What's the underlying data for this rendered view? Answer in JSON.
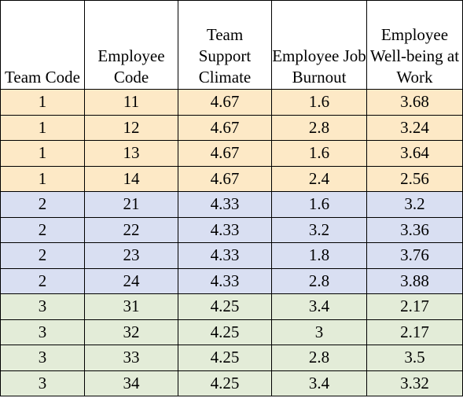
{
  "table": {
    "headers": [
      "Team Code",
      "Employee Code",
      "Team Support Climate",
      "Employee Job Burnout",
      "Employee Well-being at Work"
    ],
    "rows": [
      [
        "1",
        "11",
        "4.67",
        "1.6",
        "3.68"
      ],
      [
        "1",
        "12",
        "4.67",
        "2.8",
        "3.24"
      ],
      [
        "1",
        "13",
        "4.67",
        "1.6",
        "3.64"
      ],
      [
        "1",
        "14",
        "4.67",
        "2.4",
        "2.56"
      ],
      [
        "2",
        "21",
        "4.33",
        "1.6",
        "3.2"
      ],
      [
        "2",
        "22",
        "4.33",
        "3.2",
        "3.36"
      ],
      [
        "2",
        "23",
        "4.33",
        "1.8",
        "3.76"
      ],
      [
        "2",
        "24",
        "4.33",
        "2.8",
        "3.88"
      ],
      [
        "3",
        "31",
        "4.25",
        "3.4",
        "2.17"
      ],
      [
        "3",
        "32",
        "4.25",
        "3",
        "2.17"
      ],
      [
        "3",
        "33",
        "4.25",
        "2.8",
        "3.5"
      ],
      [
        "3",
        "34",
        "4.25",
        "3.4",
        "3.32"
      ]
    ],
    "group_colors": {
      "1": "#fde9c6",
      "2": "#d9dff2",
      "3": "#e3ecd8"
    }
  }
}
